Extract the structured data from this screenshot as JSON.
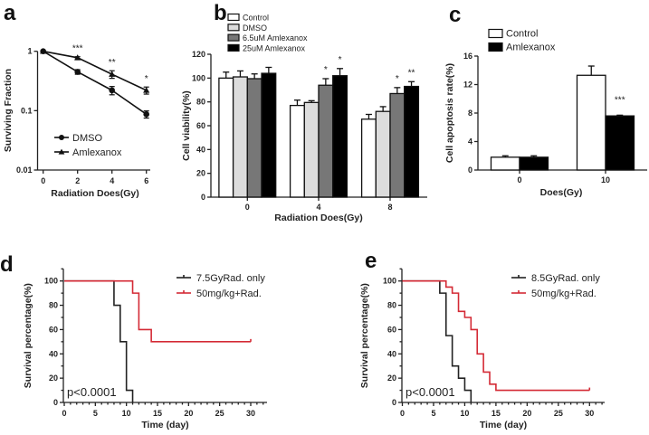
{
  "chart_data": [
    {
      "panel": "a",
      "type": "line",
      "xlabel": "Radiation Does(Gy)",
      "ylabel": "Surviving Fraction",
      "xlim": [
        0,
        6
      ],
      "xticks": [
        "0",
        "2",
        "4",
        "6"
      ],
      "yscale": "log",
      "ylim": [
        0.01,
        1
      ],
      "yticks": [
        "0.01",
        "0.1",
        "1"
      ],
      "legend_position": "bottom-left",
      "series": [
        {
          "name": "DMSO",
          "marker": "circle",
          "x": [
            0,
            2,
            4,
            6
          ],
          "y": [
            1,
            0.45,
            0.22,
            0.087
          ],
          "err": [
            0,
            0.04,
            0.035,
            0.012
          ]
        },
        {
          "name": "Amlexanox",
          "marker": "triangle",
          "x": [
            0,
            2,
            4,
            6
          ],
          "y": [
            1,
            0.78,
            0.41,
            0.22
          ],
          "err": [
            0,
            0.03,
            0.06,
            0.03
          ]
        }
      ],
      "annotations": [
        {
          "x": 2,
          "text": "***"
        },
        {
          "x": 4,
          "text": "**"
        },
        {
          "x": 6,
          "text": "*"
        }
      ]
    },
    {
      "panel": "b",
      "type": "bar",
      "xlabel": "Radiation Does(Gy)",
      "ylabel": "Cell viability(%)",
      "categories": [
        "0",
        "4",
        "8"
      ],
      "ylim": [
        0,
        120
      ],
      "yticks": [
        "0",
        "20",
        "40",
        "60",
        "80",
        "100",
        "120"
      ],
      "legend_position": "top",
      "series": [
        {
          "name": "Control",
          "color": "#ffffff",
          "values": [
            100,
            77,
            65.5
          ],
          "err": [
            5,
            4.5,
            4
          ]
        },
        {
          "name": "DMSO",
          "color": "#dcdcdc",
          "values": [
            101,
            79.5,
            72
          ],
          "err": [
            5,
            1.5,
            4
          ]
        },
        {
          "name": "6.5uM Amlexanox",
          "color": "#777777",
          "values": [
            99.5,
            94,
            87
          ],
          "err": [
            4,
            5.5,
            5
          ]
        },
        {
          "name": "25uM  Amlexanox",
          "color": "#000000",
          "values": [
            104,
            102,
            93
          ],
          "err": [
            5,
            6,
            4
          ]
        }
      ],
      "annotations": [
        {
          "category": "4",
          "series": 2,
          "text": "*"
        },
        {
          "category": "4",
          "series": 3,
          "text": "*"
        },
        {
          "category": "8",
          "series": 2,
          "text": "*"
        },
        {
          "category": "8",
          "series": 3,
          "text": "**"
        }
      ]
    },
    {
      "panel": "c",
      "type": "bar",
      "xlabel": "Does(Gy)",
      "ylabel": "Cell apoptosis rate(%)",
      "categories": [
        "0",
        "10"
      ],
      "ylim": [
        0,
        16
      ],
      "yticks": [
        "0",
        "4",
        "8",
        "12",
        "16"
      ],
      "legend_position": "top-left",
      "series": [
        {
          "name": "Control",
          "color": "#ffffff",
          "values": [
            1.8,
            13.3
          ],
          "err": [
            0.2,
            1.3
          ]
        },
        {
          "name": "Amlexanox",
          "color": "#000000",
          "values": [
            1.8,
            7.6
          ],
          "err": [
            0.2,
            0.1
          ]
        }
      ],
      "annotations": [
        {
          "category": "10",
          "series": 1,
          "text": "***"
        }
      ]
    },
    {
      "panel": "d",
      "type": "line",
      "subtype": "kaplan-meier",
      "xlabel": "Time (day)",
      "ylabel": "Survival percentage(%)",
      "xlim": [
        0,
        30
      ],
      "xticks": [
        "0",
        "5",
        "10",
        "15",
        "20",
        "25",
        "30"
      ],
      "ylim": [
        0,
        110
      ],
      "yticks": [
        "0",
        "20",
        "40",
        "60",
        "80",
        "100"
      ],
      "legend_position": "top-right",
      "pvalue": "p<0.0001",
      "series": [
        {
          "name": "7.5GyRad. only",
          "color": "#222222",
          "steps": [
            [
              0,
              100
            ],
            [
              8,
              80
            ],
            [
              9,
              50
            ],
            [
              10,
              10
            ],
            [
              11,
              0
            ]
          ],
          "end": 11
        },
        {
          "name": "50mg/kg+Rad.",
          "color": "#d42a35",
          "steps": [
            [
              0,
              100
            ],
            [
              11,
              90
            ],
            [
              12,
              60
            ],
            [
              14,
              50
            ]
          ],
          "end": 30
        }
      ]
    },
    {
      "panel": "e",
      "type": "line",
      "subtype": "kaplan-meier",
      "xlabel": "Time (day)",
      "ylabel": "Survival percentage(%)",
      "xlim": [
        0,
        30
      ],
      "xticks": [
        "0",
        "5",
        "10",
        "15",
        "20",
        "25",
        "30"
      ],
      "ylim": [
        0,
        110
      ],
      "yticks": [
        "0",
        "20",
        "40",
        "60",
        "80",
        "100"
      ],
      "legend_position": "top-right",
      "pvalue": "p<0.0001",
      "series": [
        {
          "name": "8.5GyRad. only",
          "color": "#222222",
          "steps": [
            [
              0,
              100
            ],
            [
              6,
              90
            ],
            [
              7,
              55
            ],
            [
              8,
              30
            ],
            [
              9,
              20
            ],
            [
              10,
              10
            ],
            [
              11,
              0
            ]
          ],
          "end": 11
        },
        {
          "name": "50mg/kg+Rad.",
          "color": "#d42a35",
          "steps": [
            [
              0,
              100
            ],
            [
              7,
              95
            ],
            [
              8,
              90
            ],
            [
              9,
              75
            ],
            [
              10,
              70
            ],
            [
              11,
              60
            ],
            [
              12,
              40
            ],
            [
              13,
              25
            ],
            [
              14,
              15
            ],
            [
              15,
              10
            ]
          ],
          "end": 30
        }
      ]
    }
  ]
}
